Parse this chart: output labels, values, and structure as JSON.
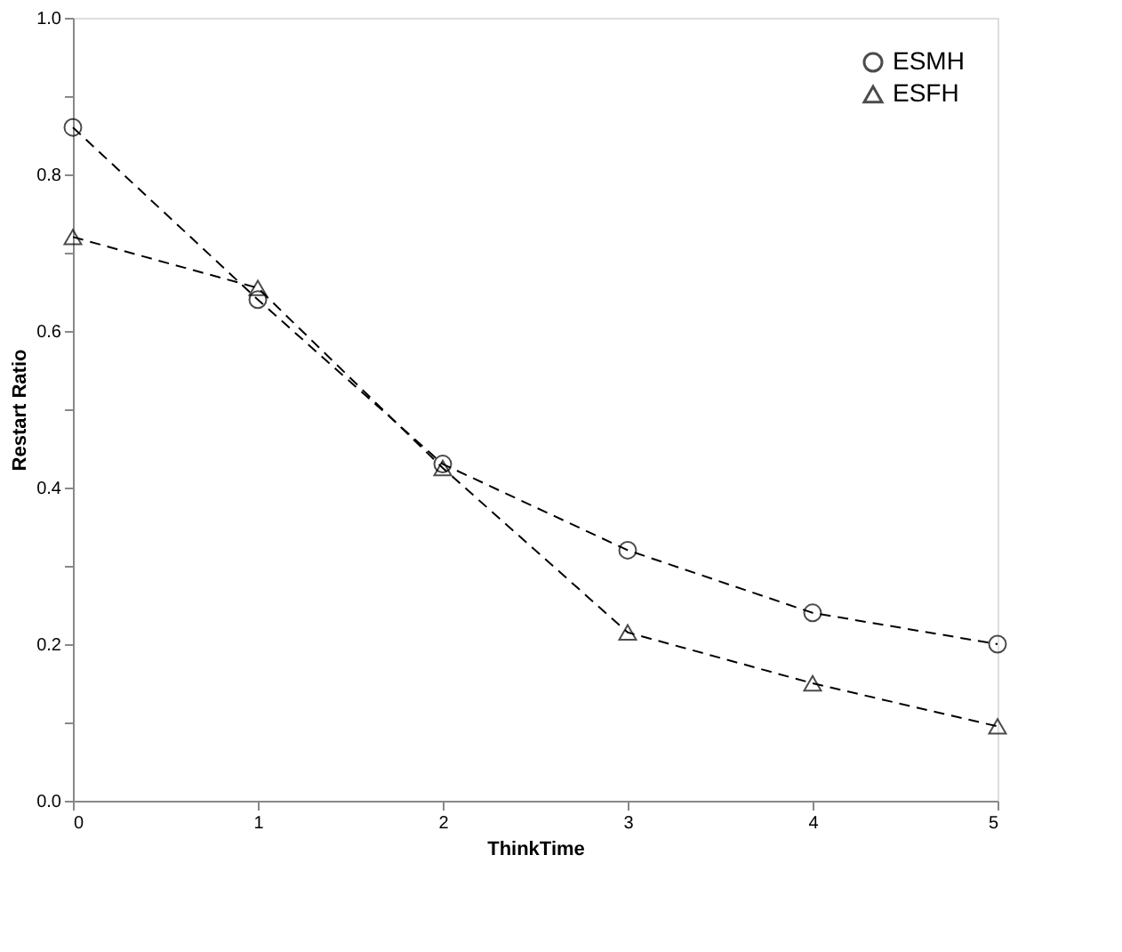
{
  "chart_data": {
    "type": "line",
    "xlabel": "ThinkTime",
    "ylabel": "Restart Ratio",
    "x": [
      0,
      1,
      2,
      3,
      4,
      5
    ],
    "series": [
      {
        "name": "ESMH",
        "color": "#000000",
        "marker": "circle",
        "values": [
          0.86,
          0.64,
          0.43,
          0.32,
          0.24,
          0.2
        ]
      },
      {
        "name": "ESFH",
        "color": "#000000",
        "marker": "triangle",
        "values": [
          0.72,
          0.655,
          0.425,
          0.215,
          0.15,
          0.095
        ]
      }
    ],
    "xlim": [
      0,
      5
    ],
    "xticks": [
      0,
      1,
      2,
      3,
      4,
      5
    ],
    "ylim": [
      0,
      1
    ],
    "yticks": [
      {
        "value": 0,
        "label": "0.0"
      },
      {
        "value": 0.1,
        "label": null
      },
      {
        "value": 0.2,
        "label": "0.2"
      },
      {
        "value": 0.3,
        "label": null
      },
      {
        "value": 0.4,
        "label": "0.4"
      },
      {
        "value": 0.5,
        "label": null
      },
      {
        "value": 0.6,
        "label": "0.6"
      },
      {
        "value": 0.7,
        "label": null
      },
      {
        "value": 0.8,
        "label": "0.8"
      },
      {
        "value": 0.9,
        "label": null
      },
      {
        "value": 1,
        "label": "1.0"
      }
    ],
    "grid": false,
    "legend": "top right",
    "line_style": "dashed"
  }
}
